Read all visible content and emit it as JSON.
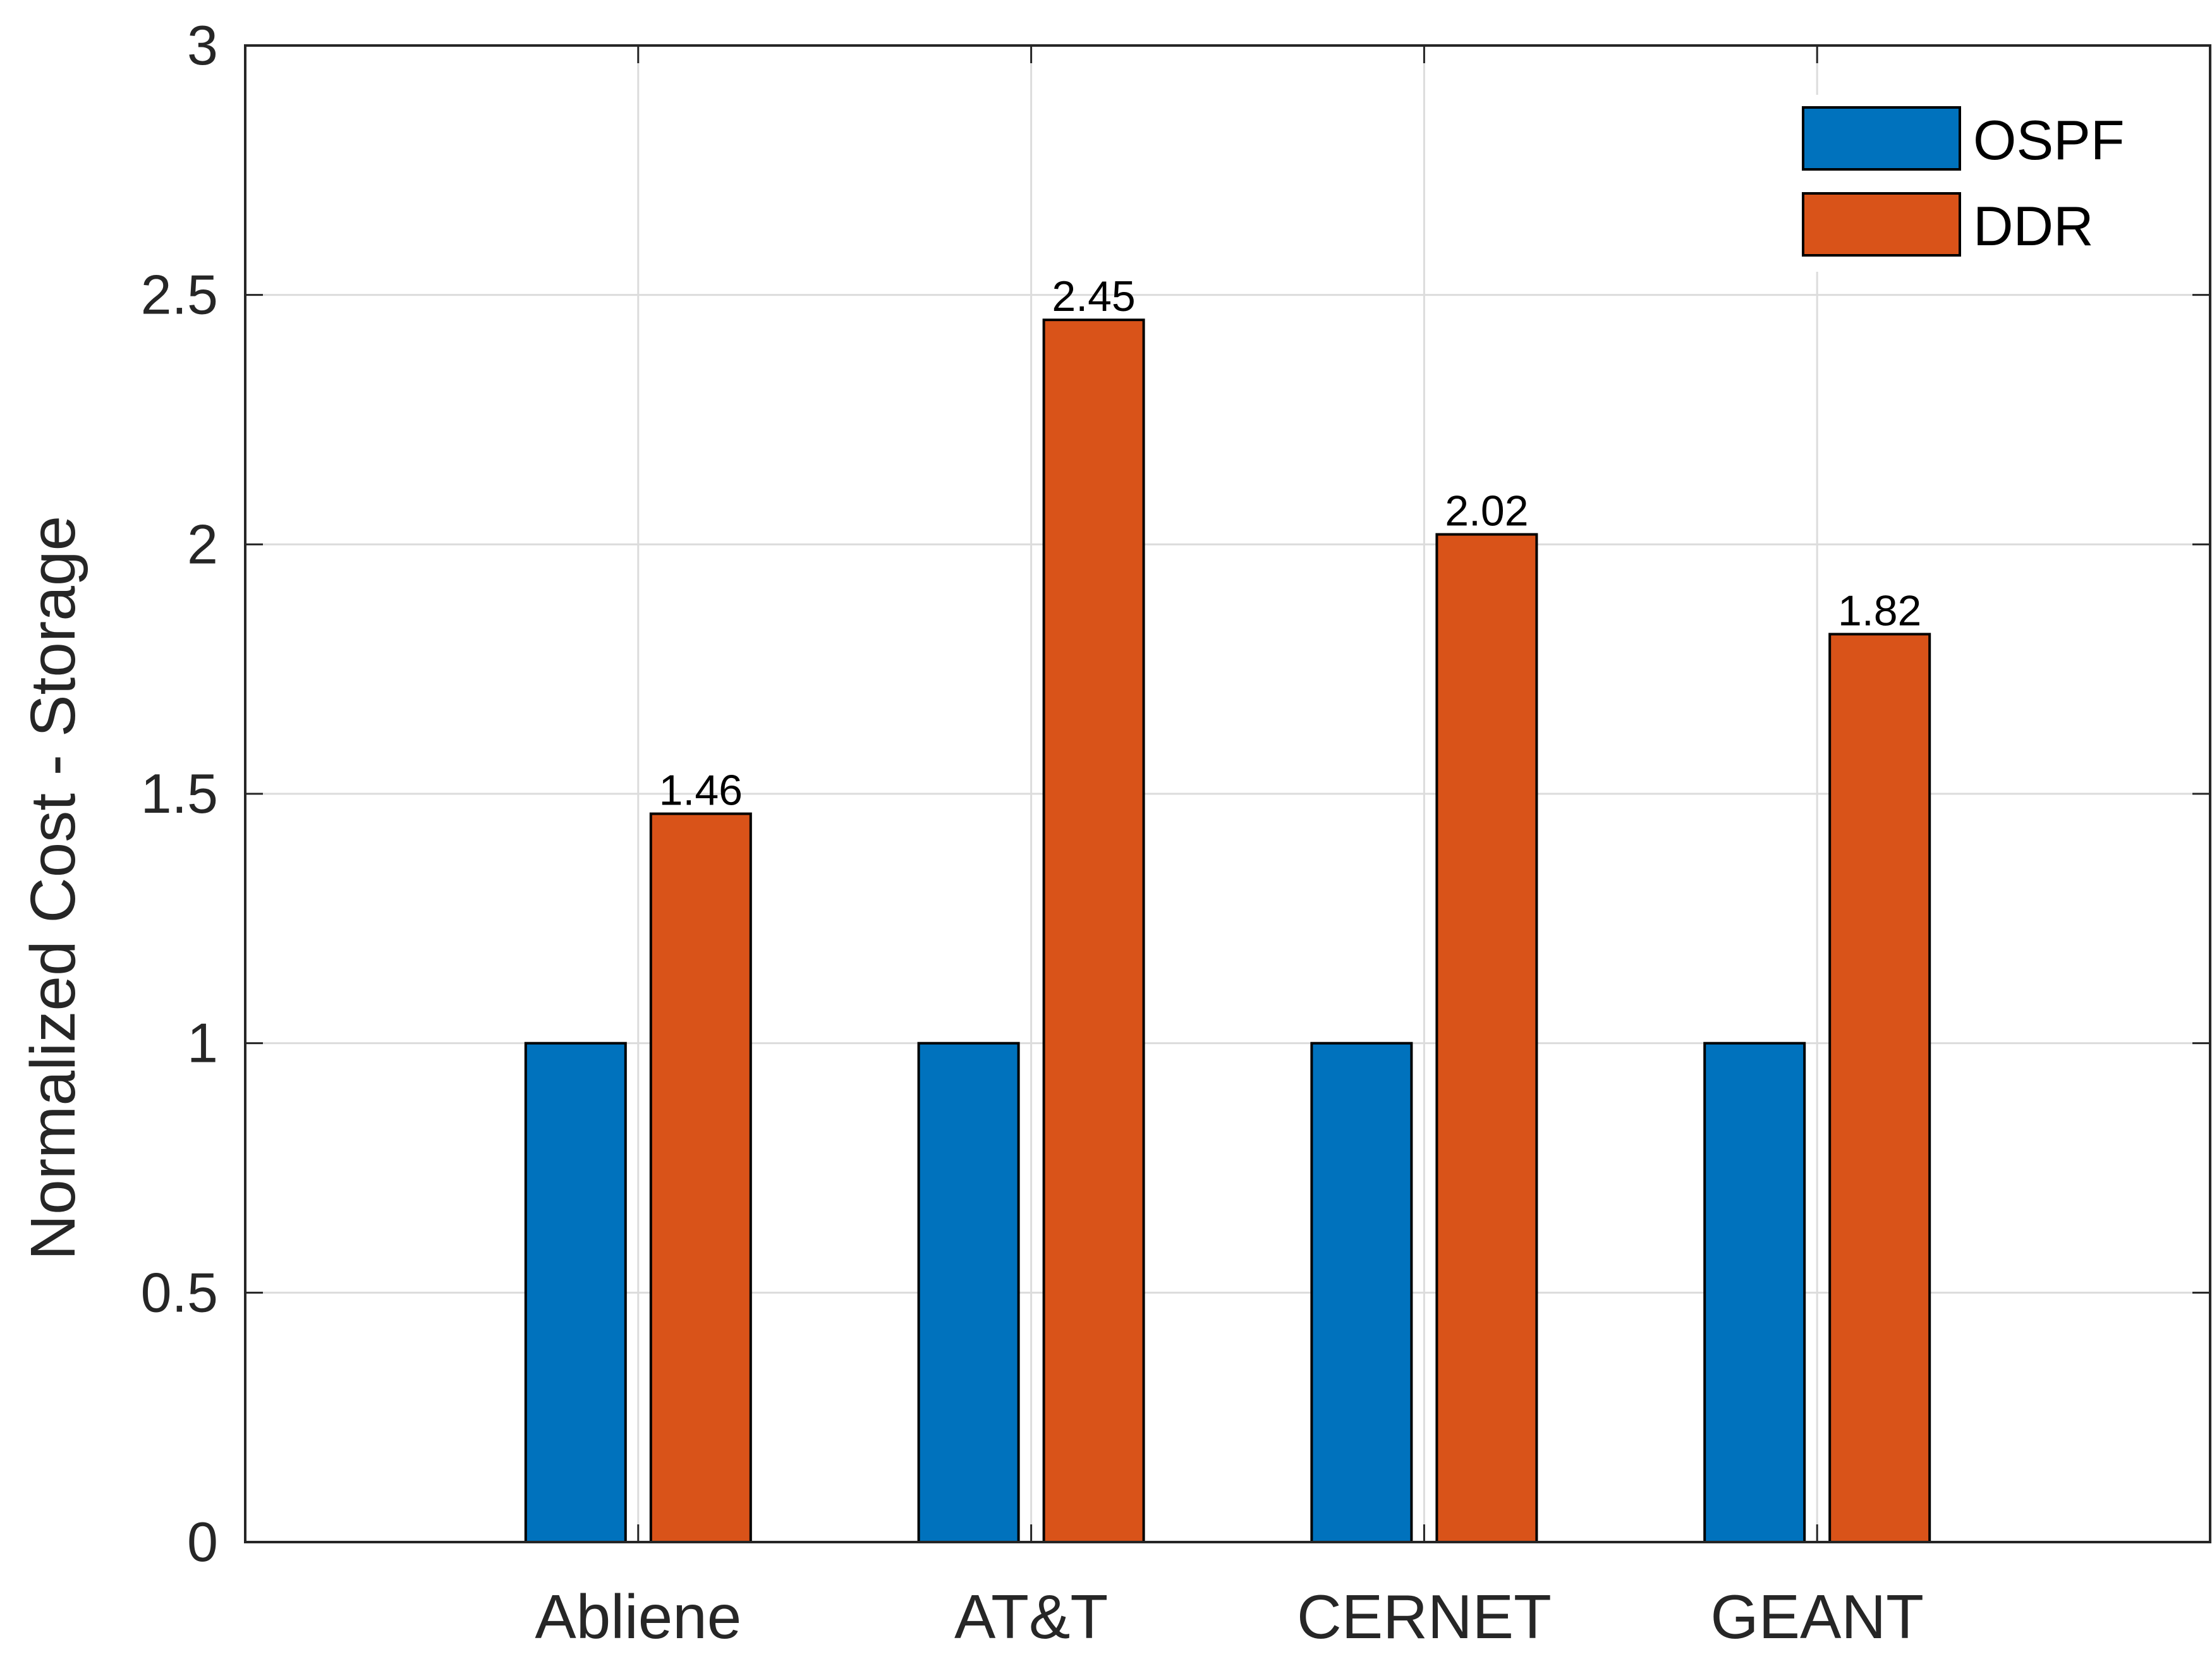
{
  "chart_data": {
    "type": "bar",
    "title": "",
    "xlabel": "",
    "ylabel": "Normalized Cost - Storage",
    "categories": [
      "Abliene",
      "AT&T",
      "CERNET",
      "GEANT"
    ],
    "series": [
      {
        "name": "OSPF",
        "values": [
          1,
          1,
          1,
          1
        ],
        "color": "#0072BD"
      },
      {
        "name": "DDR",
        "values": [
          1.46,
          2.45,
          2.02,
          1.82
        ],
        "color": "#D95319"
      }
    ],
    "data_labels": {
      "DDR": [
        "1.46",
        "2.45",
        "2.02",
        "1.82"
      ]
    },
    "ylim": [
      0,
      3
    ],
    "yticks": [
      "0",
      "0.5",
      "1",
      "1.5",
      "2",
      "2.5",
      "3"
    ],
    "grid": true,
    "legend_position": "top-right"
  }
}
